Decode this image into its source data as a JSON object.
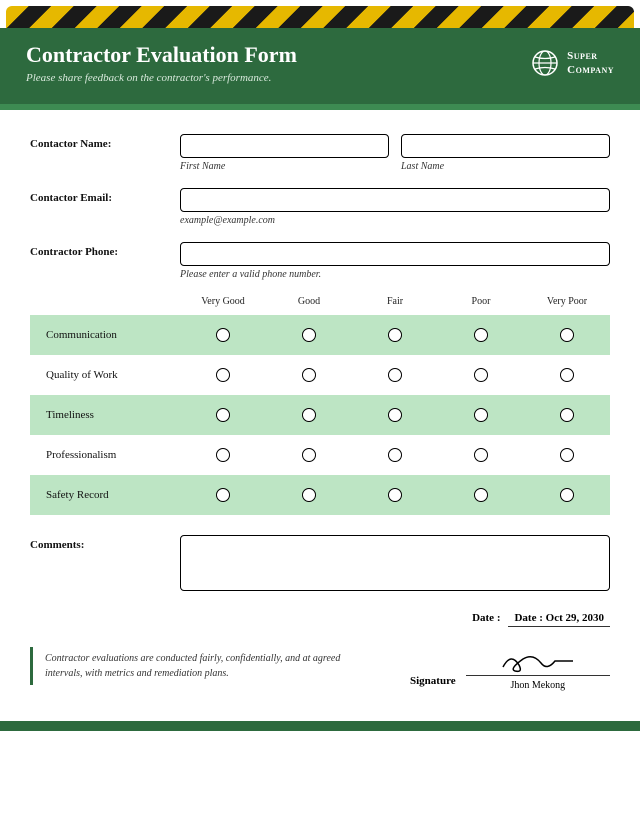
{
  "header": {
    "title": "Contractor Evaluation Form",
    "subtitle": "Please share feedback on the contractor's performance.",
    "company_line1": "Super",
    "company_line2": "Company"
  },
  "fields": {
    "name_label": "Contactor Name:",
    "first_name_hint": "First Name",
    "last_name_hint": "Last Name",
    "email_label": "Contactor Email:",
    "email_hint": "example@example.com",
    "phone_label": "Contractor Phone:",
    "phone_hint": "Please enter a valid phone number.",
    "comments_label": "Comments:"
  },
  "rating": {
    "columns": [
      "Very Good",
      "Good",
      "Fair",
      "Poor",
      "Very Poor"
    ],
    "criteria": [
      "Communication",
      "Quality of Work",
      "Timeliness",
      "Professionalism",
      "Safety Record"
    ],
    "shade_color": "#bde5c4"
  },
  "date": {
    "label": "Date :",
    "value": "Date : Oct 29, 2030"
  },
  "note": "Contractor evaluations are conducted fairly, confidentially, and at agreed intervals, with metrics and remediation plans.",
  "signature": {
    "label": "Signature",
    "name": "Jhon Mekong"
  },
  "colors": {
    "header_bg": "#2d6a3e",
    "accent": "#3d8b52"
  }
}
